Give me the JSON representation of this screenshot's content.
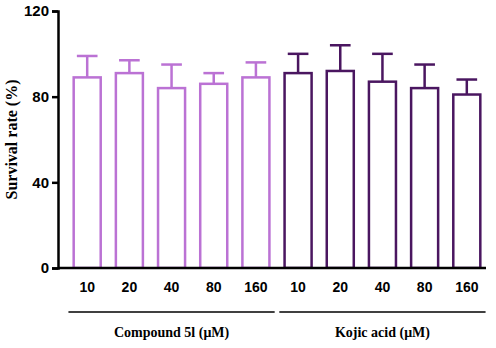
{
  "chart_data": {
    "type": "bar",
    "y_label": "Survival rate (%)",
    "categories": [
      "10",
      "20",
      "40",
      "80",
      "160"
    ],
    "series": [
      {
        "name": "Compound 5l (μM)",
        "color": "#bb72d4",
        "values": [
          89,
          91,
          84,
          86,
          89
        ],
        "errors": [
          10,
          6,
          11,
          5,
          7
        ]
      },
      {
        "name": "Kojic acid (μM)",
        "color": "#4a1660",
        "values": [
          91,
          92,
          87,
          84,
          81
        ],
        "errors": [
          9,
          12,
          13,
          11,
          7
        ]
      }
    ],
    "ylim": [
      0,
      120
    ],
    "yticks": [
      0,
      40,
      80,
      120
    ],
    "grid": false
  }
}
